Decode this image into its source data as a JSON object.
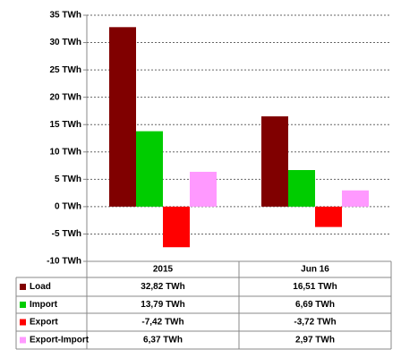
{
  "chart_data": {
    "type": "bar",
    "categories": [
      "2015",
      "Jun 16"
    ],
    "series": [
      {
        "name": "Load",
        "color": "#800000",
        "values": [
          32.82,
          16.51
        ],
        "value_labels": [
          "32,82 TWh",
          "16,51 TWh"
        ]
      },
      {
        "name": "Import",
        "color": "#00cc00",
        "values": [
          13.79,
          6.69
        ],
        "value_labels": [
          "13,79 TWh",
          "6,69 TWh"
        ]
      },
      {
        "name": "Export",
        "color": "#ff0000",
        "values": [
          -7.42,
          -3.72
        ],
        "value_labels": [
          "-7,42 TWh",
          "-3,72 TWh"
        ]
      },
      {
        "name": "Export-Import",
        "color": "#ff99ff",
        "values": [
          6.37,
          2.97
        ],
        "value_labels": [
          "6,37 TWh",
          "2,97 TWh"
        ]
      }
    ],
    "ylim": [
      -10,
      35
    ],
    "yticks": [
      {
        "value": -10,
        "label": "-10 TWh"
      },
      {
        "value": -5,
        "label": "-5 TWh"
      },
      {
        "value": 0,
        "label": "0 TWh"
      },
      {
        "value": 5,
        "label": "5 TWh"
      },
      {
        "value": 10,
        "label": "10 TWh"
      },
      {
        "value": 15,
        "label": "15 TWh"
      },
      {
        "value": 20,
        "label": "20 TWh"
      },
      {
        "value": 25,
        "label": "25 TWh"
      },
      {
        "value": 30,
        "label": "30 TWh"
      },
      {
        "value": 35,
        "label": "35 TWh"
      }
    ],
    "grid": true
  }
}
